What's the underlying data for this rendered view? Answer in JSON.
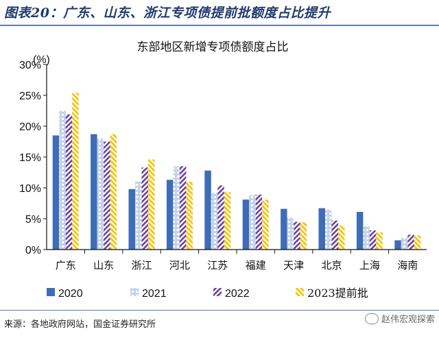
{
  "header": {
    "figure_title": "图表20：广东、山东、浙江专项债提前批额度占比提升"
  },
  "footer": {
    "source": "来源：各地政府网站，国金证券研究所",
    "watermark": "赵伟宏观探索"
  },
  "colors": {
    "s2020": "#3e6db5",
    "s2021": "#c3d3ea",
    "s2022": "#6a3fa0",
    "s2023": "#f5c400",
    "rule": "#5b7bb0"
  },
  "chart_data": {
    "type": "bar",
    "title": "东部地区新增专项债额度占比",
    "unit_label": "(%)",
    "categories": [
      "广东",
      "山东",
      "浙江",
      "河北",
      "江苏",
      "福建",
      "天津",
      "北京",
      "上海",
      "海南"
    ],
    "series": [
      {
        "name": "2020",
        "values": [
          18.5,
          18.7,
          9.8,
          11.3,
          12.8,
          8.1,
          6.6,
          6.7,
          6.1,
          1.5
        ]
      },
      {
        "name": "2021",
        "values": [
          22.5,
          18.0,
          11.0,
          13.5,
          9.2,
          8.8,
          5.2,
          6.5,
          3.8,
          1.9
        ]
      },
      {
        "name": "2022",
        "values": [
          21.9,
          17.5,
          13.3,
          13.5,
          10.4,
          8.9,
          4.5,
          4.7,
          3.1,
          2.4
        ]
      },
      {
        "name": "2023提前批",
        "values": [
          25.4,
          18.7,
          14.6,
          11.0,
          9.3,
          8.1,
          4.4,
          3.9,
          2.8,
          2.3
        ]
      }
    ],
    "ylim": [
      0,
      30
    ],
    "yticks": [
      "0%",
      "5%",
      "10%",
      "15%",
      "20%",
      "25%",
      "30%"
    ],
    "grid": false,
    "legend": "bottom"
  }
}
